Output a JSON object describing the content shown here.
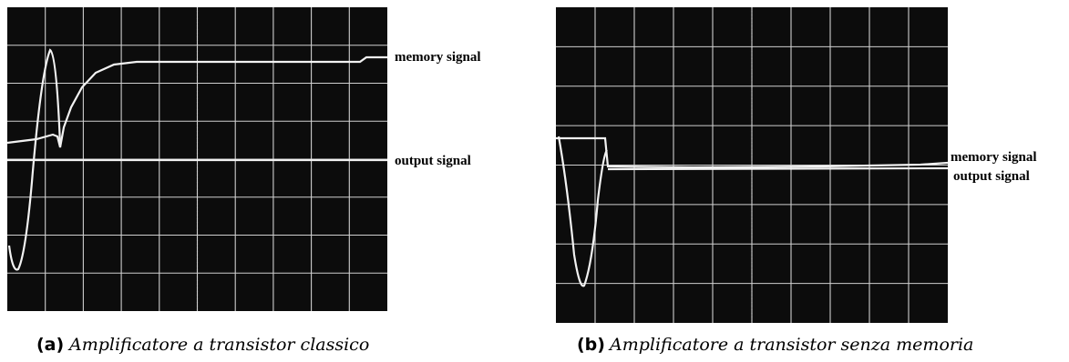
{
  "panels": [
    {
      "tag": "(a)",
      "caption": "Amplificatore a transistor classico",
      "labels": [
        "memory signal",
        "output signal"
      ]
    },
    {
      "tag": "(b)",
      "caption": "Amplificatore a transistor senza memoria",
      "labels": [
        "memory signal",
        "output signal"
      ]
    }
  ]
}
